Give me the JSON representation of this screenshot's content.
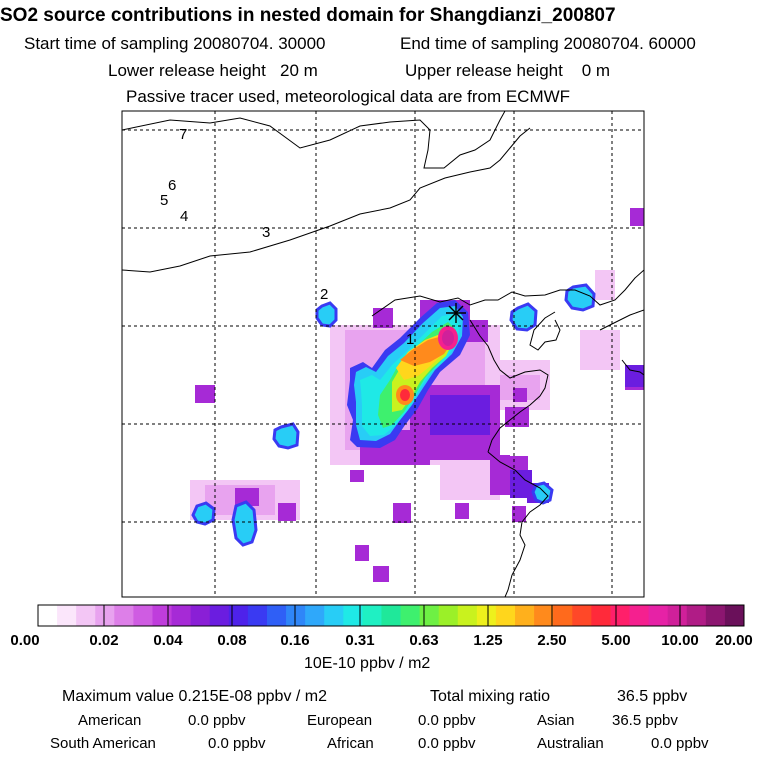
{
  "header": {
    "title": "SO2 source contributions in nested domain for Shangdianzi_200807",
    "start_label": "Start time of sampling 20080704. 30000",
    "end_label": "End time of sampling 20080704. 60000",
    "lower_label": "Lower release height   20 m",
    "upper_label": "Upper release height    0 m",
    "tracer_label": "Passive tracer used, meteorological data are from ECMWF"
  },
  "map": {
    "station_numbers": [
      "1",
      "2",
      "3",
      "4",
      "5",
      "6",
      "7"
    ],
    "receptor_marker": "asterisk-icon"
  },
  "colorbar": {
    "ticks": [
      "0.00",
      "0.02",
      "0.04",
      "0.08",
      "0.16",
      "0.31",
      "0.63",
      "1.25",
      "2.50",
      "5.00",
      "10.00",
      "20.00"
    ],
    "unit": "10E-10 ppbv / m2",
    "colors": [
      "#ffffff",
      "#fbe6fb",
      "#f3c6f5",
      "#e8a3ef",
      "#dd7fe8",
      "#cf5ce2",
      "#bf3ddc",
      "#a62ad6",
      "#8a1fd6",
      "#6b1de0",
      "#4e22ea",
      "#3a3af2",
      "#2f5ff6",
      "#2f86f8",
      "#2fa8fa",
      "#28cdf6",
      "#1fe9e6",
      "#1ff0c3",
      "#1fe89a",
      "#3ef06e",
      "#6ef044",
      "#9bf028",
      "#c9f21e",
      "#eef01c",
      "#ffd61c",
      "#ffb01c",
      "#ff8a1c",
      "#ff6a1c",
      "#ff4828",
      "#ff2a3a",
      "#ff1f6a",
      "#f5208f",
      "#e622a6",
      "#d0209a",
      "#b01c86",
      "#8c1670",
      "#6a105a"
    ]
  },
  "stats": {
    "max_label": "Maximum value  0.215E-08 ppbv / m2",
    "total_label": "Total mixing ratio",
    "total_value": "36.5 ppbv",
    "american_label": "American",
    "american_value": "0.0 ppbv",
    "european_label": "European",
    "european_value": "0.0 ppbv",
    "asian_label": "Asian",
    "asian_value": "36.5 ppbv",
    "south_american_label": "South American",
    "south_american_value": "0.0 ppbv",
    "african_label": "African",
    "african_value": "0.0 ppbv",
    "australian_label": "Australian",
    "australian_value": "0.0 ppbv"
  }
}
